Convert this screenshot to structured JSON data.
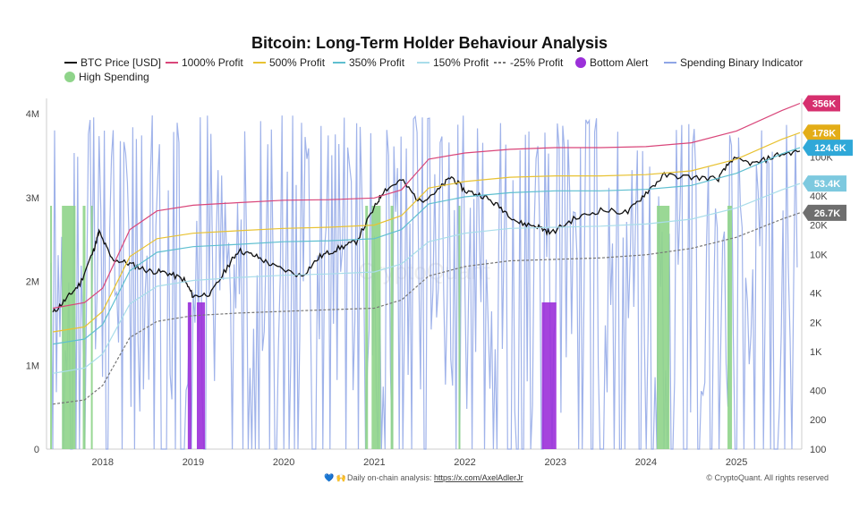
{
  "chart_data": {
    "type": "line",
    "title": "Bitcoin: Long-Term Holder Behaviour Analysis",
    "legend": [
      {
        "name": "BTC Price [USD]",
        "color": "#111111",
        "style": "line"
      },
      {
        "name": "1000% Profit",
        "color": "#d9467a",
        "style": "line"
      },
      {
        "name": "500% Profit",
        "color": "#e8c232",
        "style": "line"
      },
      {
        "name": "350% Profit",
        "color": "#5fbfd0",
        "style": "line"
      },
      {
        "name": "150% Profit",
        "color": "#a9ddea",
        "style": "line"
      },
      {
        "name": "-25% Profit",
        "color": "#777777",
        "style": "dashed"
      },
      {
        "name": "Bottom Alert",
        "color": "#9b30d9",
        "style": "dot"
      },
      {
        "name": "Spending Binary Indicator",
        "color": "#8fa6e6",
        "style": "line"
      },
      {
        "name": "High Spending",
        "color": "#8fd48a",
        "style": "dot"
      }
    ],
    "x_ticks": [
      "2018",
      "2019",
      "2020",
      "2021",
      "2022",
      "2023",
      "2024",
      "2025"
    ],
    "y_left_ticks": [
      "0",
      "1M",
      "2M",
      "3M",
      "4M"
    ],
    "y_right_ticks": [
      "100",
      "200",
      "400",
      "1K",
      "2K",
      "4K",
      "10K",
      "20K",
      "40K",
      "100K"
    ],
    "y_right_scale": "log",
    "badges": [
      {
        "label": "356K",
        "color": "#d62f6e"
      },
      {
        "label": "178K",
        "color": "#e3ad17"
      },
      {
        "label": "124.6K",
        "color": "#2fa8d8"
      },
      {
        "label": "53.4K",
        "color": "#7dc9df"
      },
      {
        "label": "26.7K",
        "color": "#6e6e6e"
      }
    ],
    "series": [
      {
        "name": "BTC Price [USD]",
        "x": [
          2017.45,
          2017.6,
          2017.75,
          2017.9,
          2017.96,
          2018.1,
          2018.3,
          2018.5,
          2018.7,
          2018.9,
          2019.0,
          2019.2,
          2019.4,
          2019.5,
          2019.7,
          2019.9,
          2020.2,
          2020.4,
          2020.6,
          2020.8,
          2021.0,
          2021.1,
          2021.3,
          2021.5,
          2021.7,
          2021.85,
          2022.0,
          2022.2,
          2022.4,
          2022.6,
          2022.8,
          2022.95,
          2023.2,
          2023.5,
          2023.8,
          2024.0,
          2024.2,
          2024.5,
          2024.8,
          2024.95,
          2025.2,
          2025.45,
          2025.7
        ],
        "y": [
          2500,
          3500,
          5000,
          11000,
          17000,
          9000,
          8000,
          6800,
          6500,
          5500,
          3700,
          4000,
          8000,
          11000,
          9500,
          7500,
          6000,
          9500,
          11500,
          13500,
          30000,
          45000,
          58000,
          35000,
          45000,
          63000,
          45000,
          40000,
          30000,
          21000,
          19500,
          16500,
          23000,
          28500,
          27000,
          43000,
          65000,
          62000,
          60000,
          95000,
          85000,
          105000,
          115000
        ]
      },
      {
        "name": "1000% Profit",
        "x": [
          2017.45,
          2017.8,
          2018.0,
          2018.3,
          2018.6,
          2019.0,
          2019.5,
          2020.0,
          2020.5,
          2021.0,
          2021.3,
          2021.6,
          2022.0,
          2022.5,
          2023.0,
          2023.5,
          2024.0,
          2024.5,
          2025.0,
          2025.5,
          2025.7
        ],
        "y": [
          2800,
          3200,
          4500,
          18000,
          28000,
          32000,
          34000,
          36000,
          36500,
          38000,
          46000,
          95000,
          110000,
          120000,
          125000,
          125000,
          128000,
          140000,
          185000,
          300000,
          356000
        ]
      },
      {
        "name": "500% Profit",
        "x": [
          2017.45,
          2017.8,
          2018.0,
          2018.3,
          2018.6,
          2019.0,
          2019.5,
          2020.0,
          2020.5,
          2021.0,
          2021.3,
          2021.6,
          2022.0,
          2022.5,
          2023.0,
          2023.5,
          2024.0,
          2024.5,
          2025.0,
          2025.5,
          2025.7
        ],
        "y": [
          1600,
          1800,
          2600,
          9500,
          14500,
          16500,
          17500,
          18500,
          19000,
          20000,
          25000,
          48000,
          56000,
          62000,
          64000,
          64000,
          66000,
          72000,
          95000,
          152000,
          178000
        ]
      },
      {
        "name": "350% Profit",
        "x": [
          2017.45,
          2017.8,
          2018.0,
          2018.3,
          2018.6,
          2019.0,
          2019.5,
          2020.0,
          2020.5,
          2021.0,
          2021.3,
          2021.6,
          2022.0,
          2022.5,
          2023.0,
          2023.5,
          2024.0,
          2024.5,
          2025.0,
          2025.5,
          2025.7
        ],
        "y": [
          1200,
          1350,
          1900,
          6800,
          10500,
          12000,
          12700,
          13500,
          13800,
          14500,
          18000,
          33000,
          39000,
          43000,
          45000,
          45000,
          46500,
          51000,
          68000,
          108000,
          124600
        ]
      },
      {
        "name": "150% Profit",
        "x": [
          2017.45,
          2017.8,
          2018.0,
          2018.3,
          2018.6,
          2019.0,
          2019.5,
          2020.0,
          2020.5,
          2021.0,
          2021.3,
          2021.6,
          2022.0,
          2022.5,
          2023.0,
          2023.5,
          2024.0,
          2024.5,
          2025.0,
          2025.5,
          2025.7
        ],
        "y": [
          600,
          680,
          950,
          3100,
          4700,
          5400,
          5800,
          6100,
          6300,
          6600,
          8000,
          13500,
          16500,
          18500,
          19000,
          19500,
          20500,
          23000,
          30000,
          46000,
          53400
        ]
      },
      {
        "name": "-25% Profit",
        "x": [
          2017.45,
          2017.8,
          2018.0,
          2018.3,
          2018.6,
          2019.0,
          2019.5,
          2020.0,
          2020.5,
          2021.0,
          2021.3,
          2021.6,
          2022.0,
          2022.5,
          2023.0,
          2023.5,
          2024.0,
          2024.5,
          2025.0,
          2025.5,
          2025.7
        ],
        "y": [
          290,
          320,
          450,
          1400,
          2050,
          2350,
          2500,
          2600,
          2700,
          2800,
          3400,
          6000,
          7500,
          8600,
          8900,
          9200,
          9900,
          11500,
          15000,
          23000,
          26700
        ]
      }
    ],
    "bottom_alert_periods": [
      [
        2018.94,
        2018.98
      ],
      [
        2019.04,
        2019.13
      ],
      [
        2022.85,
        2023.01
      ]
    ],
    "high_spending_periods": [
      [
        2017.42,
        2017.44
      ],
      [
        2017.55,
        2017.7
      ],
      [
        2017.78,
        2017.81
      ],
      [
        2017.87,
        2017.89
      ],
      [
        2020.9,
        2020.93
      ],
      [
        2020.97,
        2021.07
      ],
      [
        2021.18,
        2021.21
      ],
      [
        2021.93,
        2021.95
      ],
      [
        2024.12,
        2024.26
      ],
      [
        2024.9,
        2024.95
      ]
    ],
    "xlim": [
      2017.38,
      2025.72
    ],
    "ylim_left": [
      0,
      4000000
    ],
    "ylim_right": [
      100,
      400000
    ]
  },
  "footer": {
    "left_text": "Daily on-chain analysis: ",
    "left_link": "https://x.com/AxelAdlerJr",
    "right_text": "© CryptoQuant. All rights reserved"
  }
}
